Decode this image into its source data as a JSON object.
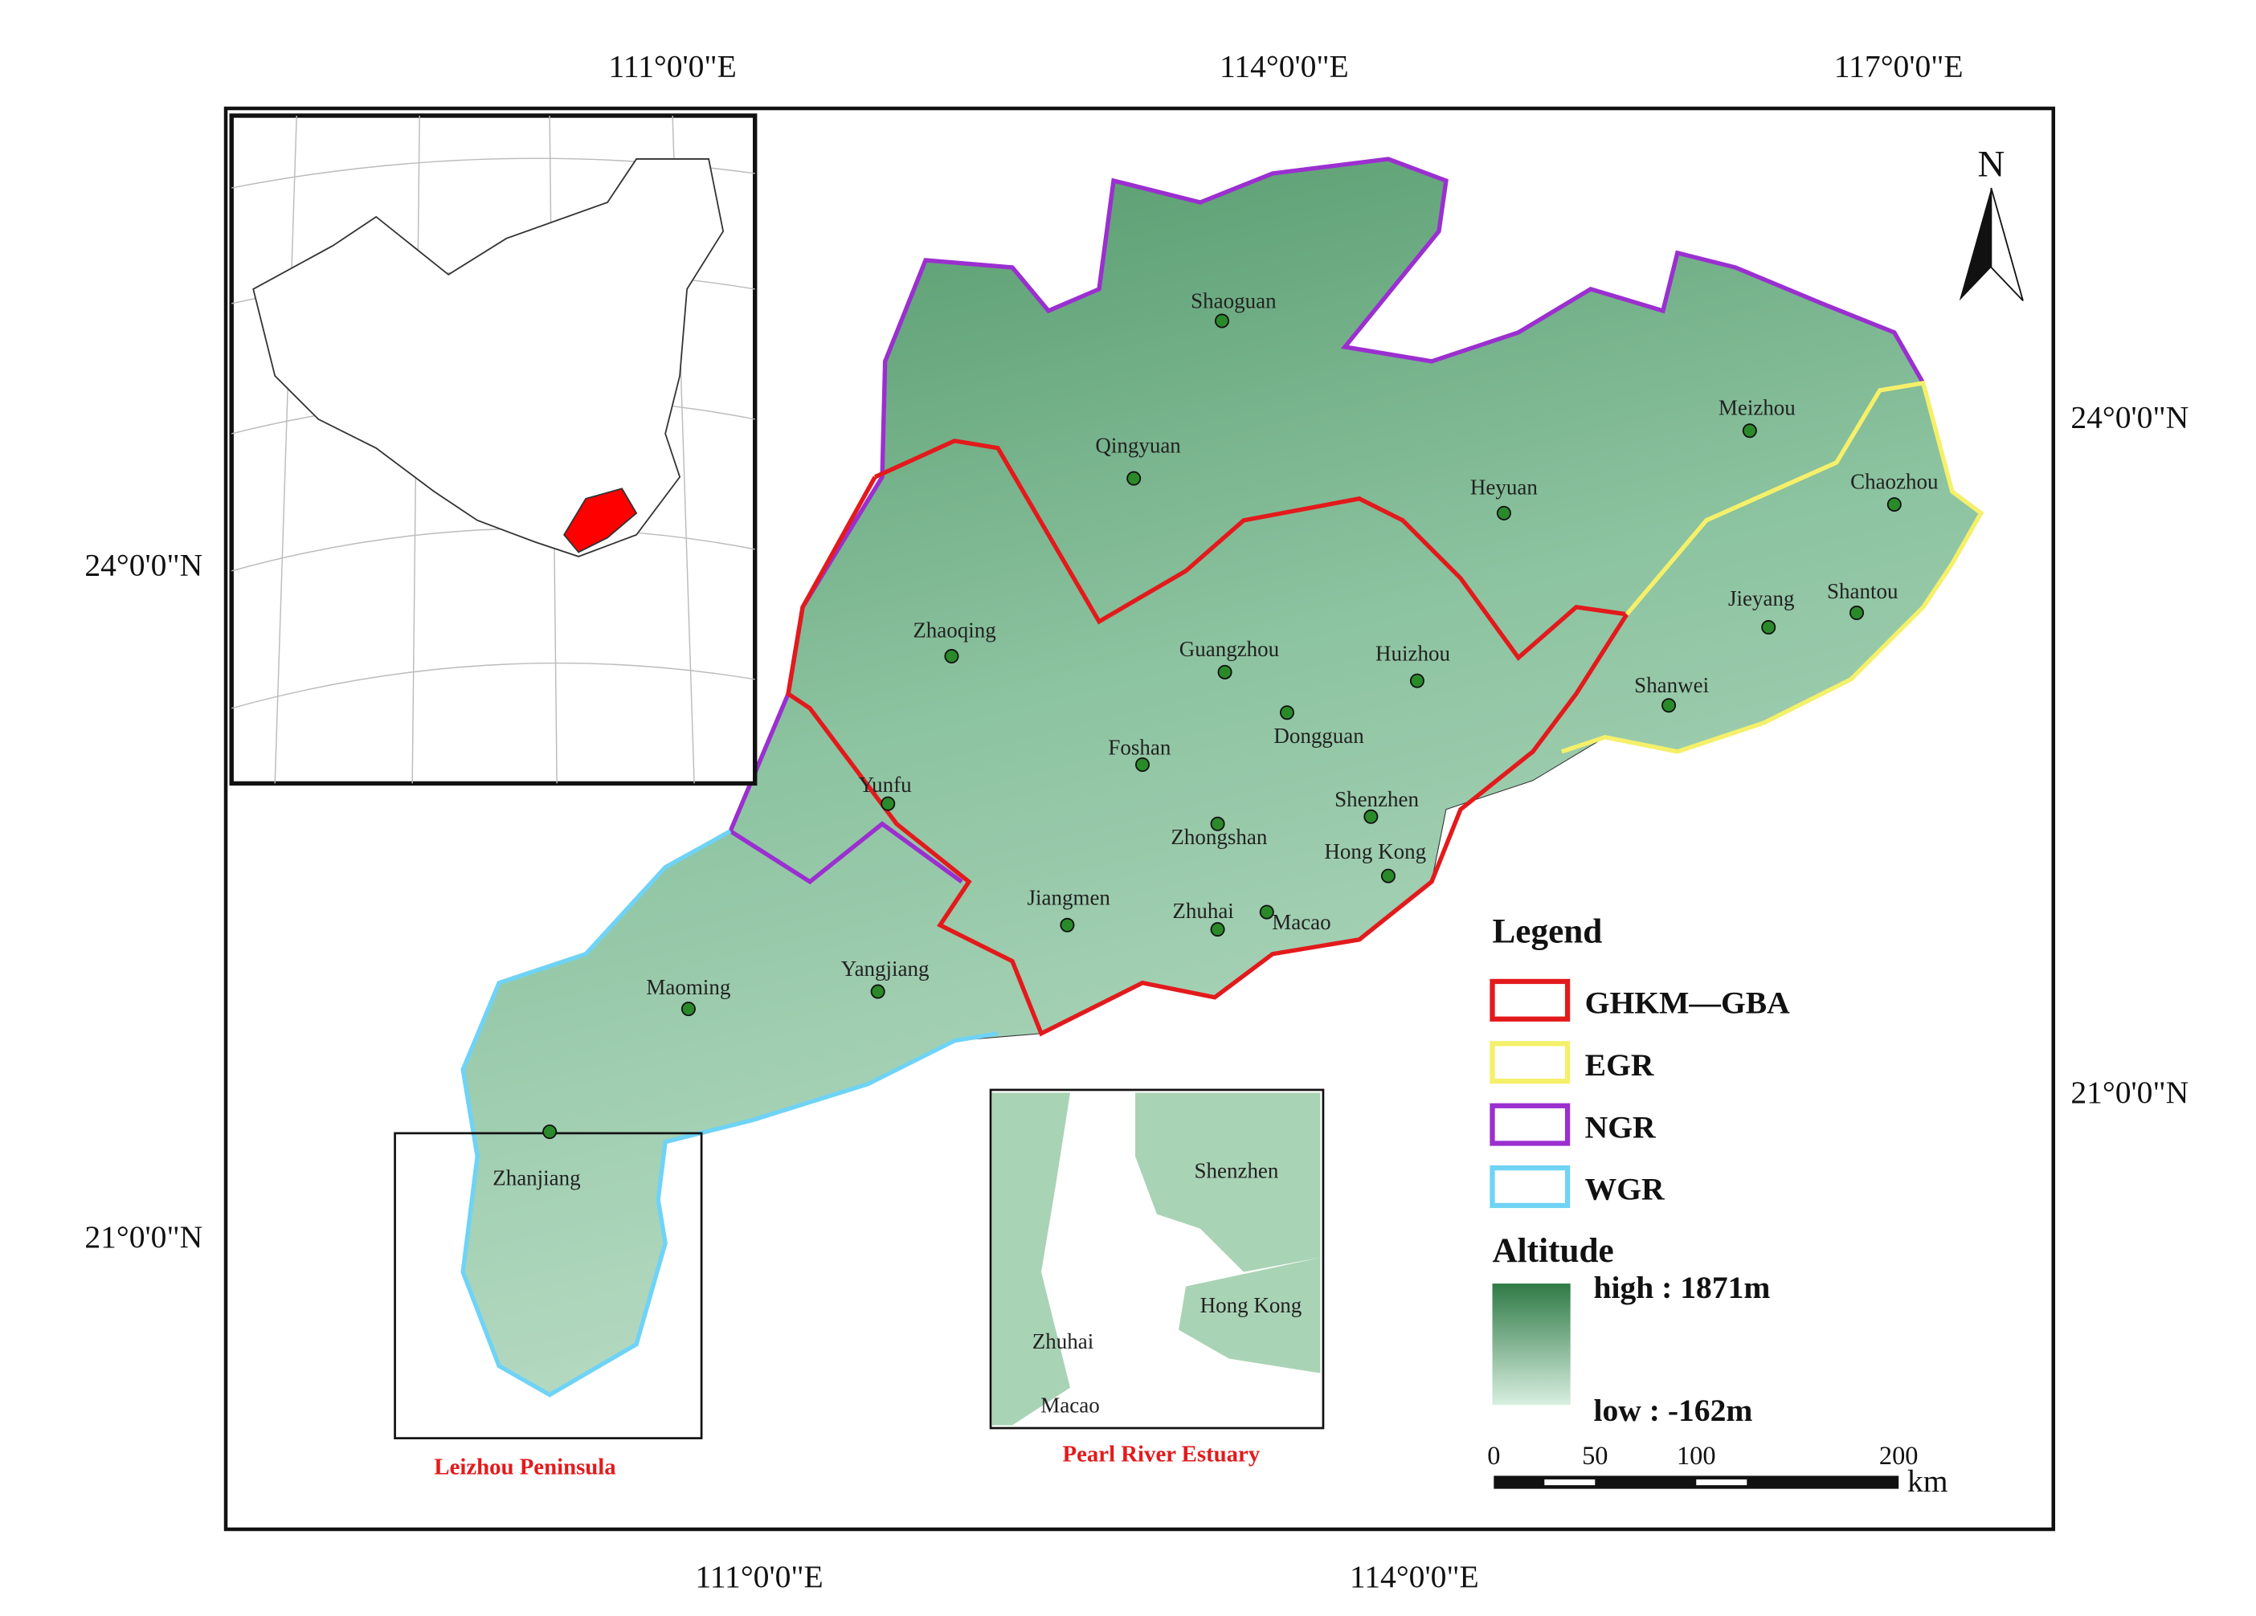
{
  "map": {
    "lon_labels_top": [
      "111°0'0\"E",
      "114°0'0\"E",
      "117°0'0\"E"
    ],
    "lon_labels_bottom": [
      "111°0'0\"E",
      "114°0'0\"E"
    ],
    "lat_labels_left": [
      "24°0'0\"N",
      "21°0'0\"N"
    ],
    "lat_labels_right": [
      "24°0'0\"N",
      "21°0'0\"N"
    ],
    "north": "N",
    "cities": [
      "Shaoguan",
      "Qingyuan",
      "Meizhou",
      "Heyuan",
      "Chaozhou",
      "Zhaoqing",
      "Guangzhou",
      "Huizhou",
      "Jieyang",
      "Shantou",
      "Shanwei",
      "Dongguan",
      "Foshan",
      "Yunfu",
      "Shenzhen",
      "Zhongshan",
      "Hong Kong",
      "Jiangmen",
      "Zhuhai",
      "Macao",
      "Yangjiang",
      "Maoming",
      "Zhanjiang"
    ],
    "legend": {
      "title": "Legend",
      "regions": [
        {
          "name": "GHKM—GBA",
          "color": "#e31a1c"
        },
        {
          "name": "EGR",
          "color": "#f5f06a"
        },
        {
          "name": "NGR",
          "color": "#9b2fd0"
        },
        {
          "name": "WGR",
          "color": "#6fd3f5"
        }
      ],
      "altitude_title": "Altitude",
      "high": "high : 1871m",
      "low": "low : -162m"
    },
    "scale_bar": {
      "ticks": [
        0,
        50,
        100,
        200
      ],
      "unit": "km"
    },
    "insets": [
      {
        "caption": "Leizhou Peninsula"
      },
      {
        "caption": "Pearl River Estuary",
        "labels": [
          "Shenzhen",
          "Hong Kong",
          "Zhuhai",
          "Macao"
        ]
      }
    ]
  }
}
